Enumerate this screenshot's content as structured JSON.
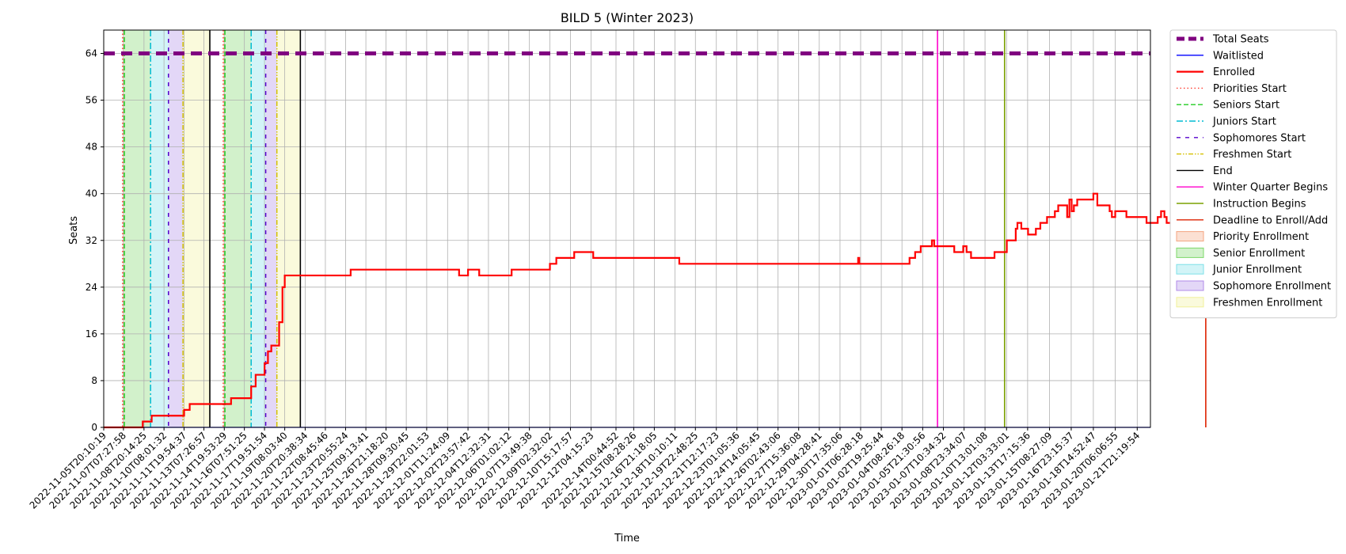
{
  "chart_data": {
    "type": "line",
    "title": "BILD 5 (Winter 2023)",
    "xlabel": "Time",
    "ylabel": "Seats",
    "ylim": [
      0,
      68
    ],
    "yticks": [
      0,
      8,
      16,
      24,
      32,
      40,
      48,
      56,
      64
    ],
    "grid": true,
    "legend_position": "outside-right",
    "x_start": "2022-11-05T20:10:19",
    "x_end": "2023-01-22T21:00:00",
    "x_tick_labels": [
      "2022-11-05T20:10:19",
      "2022-11-07T07:27:58",
      "2022-11-08T20:14:25",
      "2022-11-10T08:01:32",
      "2022-11-11T19:54:37",
      "2022-11-13T07:26:57",
      "2022-11-14T19:53:29",
      "2022-11-16T07:51:25",
      "2022-11-17T19:51:54",
      "2022-11-19T08:03:40",
      "2022-11-20T20:38:34",
      "2022-11-22T08:45:46",
      "2022-11-23T20:55:24",
      "2022-11-25T09:13:41",
      "2022-11-26T21:18:20",
      "2022-11-28T09:30:45",
      "2022-11-29T22:01:53",
      "2022-12-01T11:24:09",
      "2022-12-02T23:57:42",
      "2022-12-04T12:32:31",
      "2022-12-06T01:02:12",
      "2022-12-07T13:49:38",
      "2022-12-09T02:32:02",
      "2022-12-10T15:17:57",
      "2022-12-12T04:15:23",
      "2022-12-14T00:44:52",
      "2022-12-15T08:28:26",
      "2022-12-16T21:18:05",
      "2022-12-18T10:10:11",
      "2022-12-19T22:48:25",
      "2022-12-21T12:17:23",
      "2022-12-23T01:05:36",
      "2022-12-24T14:05:45",
      "2022-12-26T02:43:06",
      "2022-12-27T15:36:08",
      "2022-12-29T04:28:41",
      "2022-12-30T17:35:06",
      "2023-01-01T06:28:18",
      "2023-01-02T19:25:44",
      "2023-01-04T08:26:18",
      "2023-01-05T21:30:56",
      "2023-01-07T10:34:32",
      "2023-01-08T23:34:07",
      "2023-01-10T13:01:08",
      "2023-01-12T03:33:01",
      "2023-01-13T17:15:36",
      "2023-01-15T08:27:09",
      "2023-01-16T23:15:37",
      "2023-01-18T14:52:47",
      "2023-01-20T06:06:55",
      "2023-01-21T21:19:54"
    ],
    "series": [
      {
        "name": "Total Seats",
        "color": "#800080",
        "points": [
          [
            "2022-11-05T20:10:19",
            64
          ],
          [
            "2023-01-22T21:00:00",
            64
          ]
        ]
      },
      {
        "name": "Waitlisted",
        "color": "#0000ff",
        "points": [
          [
            "2022-11-05T20:10:19",
            0
          ],
          [
            "2023-01-22T21:00:00",
            0
          ]
        ]
      },
      {
        "name": "Enrolled",
        "color": "#ff0000",
        "points": [
          [
            "2022-11-05T20:10:19",
            0
          ],
          [
            "2022-11-08T06:00:00",
            0
          ],
          [
            "2022-11-08T18:00:00",
            1
          ],
          [
            "2022-11-09T10:00:00",
            2
          ],
          [
            "2022-11-11T12:00:00",
            2
          ],
          [
            "2022-11-11T20:00:00",
            3
          ],
          [
            "2022-11-12T06:00:00",
            4
          ],
          [
            "2022-11-15T00:00:00",
            4
          ],
          [
            "2022-11-15T08:00:00",
            5
          ],
          [
            "2022-11-16T12:00:00",
            5
          ],
          [
            "2022-11-16T20:00:00",
            7
          ],
          [
            "2022-11-17T04:00:00",
            9
          ],
          [
            "2022-11-17T14:00:00",
            9
          ],
          [
            "2022-11-17T20:00:00",
            11
          ],
          [
            "2022-11-18T02:00:00",
            13
          ],
          [
            "2022-11-18T08:00:00",
            14
          ],
          [
            "2022-11-18T18:00:00",
            14
          ],
          [
            "2022-11-18T22:00:00",
            18
          ],
          [
            "2022-11-19T04:00:00",
            24
          ],
          [
            "2022-11-19T08:03:40",
            26
          ],
          [
            "2022-11-24T00:00:00",
            26
          ],
          [
            "2022-11-24T06:00:00",
            27
          ],
          [
            "2022-12-02T00:00:00",
            27
          ],
          [
            "2022-12-02T08:00:00",
            26
          ],
          [
            "2022-12-03T00:00:00",
            27
          ],
          [
            "2022-12-03T20:00:00",
            26
          ],
          [
            "2022-12-06T00:00:00",
            26
          ],
          [
            "2022-12-06T06:00:00",
            27
          ],
          [
            "2022-12-08T18:00:00",
            27
          ],
          [
            "2022-12-09T02:32:02",
            28
          ],
          [
            "2022-12-09T14:00:00",
            29
          ],
          [
            "2022-12-10T12:00:00",
            29
          ],
          [
            "2022-12-10T22:00:00",
            30
          ],
          [
            "2022-12-12T00:00:00",
            30
          ],
          [
            "2022-12-12T08:00:00",
            29
          ],
          [
            "2022-12-18T12:00:00",
            29
          ],
          [
            "2022-12-18T18:00:00",
            28
          ],
          [
            "2023-01-01T00:00:00",
            28
          ],
          [
            "2023-01-01T02:00:00",
            29
          ],
          [
            "2023-01-01T04:00:00",
            28
          ],
          [
            "2023-01-04T12:00:00",
            28
          ],
          [
            "2023-01-04T22:00:00",
            29
          ],
          [
            "2023-01-05T08:00:00",
            30
          ],
          [
            "2023-01-05T18:00:00",
            31
          ],
          [
            "2023-01-06T12:00:00",
            31
          ],
          [
            "2023-01-06T14:00:00",
            32
          ],
          [
            "2023-01-06T18:00:00",
            31
          ],
          [
            "2023-01-08T00:00:00",
            31
          ],
          [
            "2023-01-08T06:00:00",
            30
          ],
          [
            "2023-01-08T18:00:00",
            30
          ],
          [
            "2023-01-08T22:00:00",
            31
          ],
          [
            "2023-01-09T04:00:00",
            30
          ],
          [
            "2023-01-09T12:00:00",
            29
          ],
          [
            "2023-01-10T22:00:00",
            29
          ],
          [
            "2023-01-11T06:00:00",
            30
          ],
          [
            "2023-01-11T20:00:00",
            30
          ],
          [
            "2023-01-12T04:00:00",
            32
          ],
          [
            "2023-01-12T16:00:00",
            32
          ],
          [
            "2023-01-12T20:00:00",
            34
          ],
          [
            "2023-01-12T23:00:00",
            35
          ],
          [
            "2023-01-13T06:00:00",
            34
          ],
          [
            "2023-01-13T18:00:00",
            33
          ],
          [
            "2023-01-14T08:00:00",
            34
          ],
          [
            "2023-01-14T16:00:00",
            35
          ],
          [
            "2023-01-15T04:00:00",
            36
          ],
          [
            "2023-01-15T18:00:00",
            37
          ],
          [
            "2023-01-16T00:00:00",
            38
          ],
          [
            "2023-01-16T12:00:00",
            38
          ],
          [
            "2023-01-16T16:00:00",
            36
          ],
          [
            "2023-01-16T20:00:00",
            39
          ],
          [
            "2023-01-17T00:00:00",
            37
          ],
          [
            "2023-01-17T04:00:00",
            38
          ],
          [
            "2023-01-17T10:00:00",
            39
          ],
          [
            "2023-01-18T08:00:00",
            39
          ],
          [
            "2023-01-18T14:52:47",
            40
          ],
          [
            "2023-01-18T22:00:00",
            38
          ],
          [
            "2023-01-19T16:00:00",
            38
          ],
          [
            "2023-01-19T20:00:00",
            37
          ],
          [
            "2023-01-20T00:00:00",
            36
          ],
          [
            "2023-01-20T06:00:00",
            37
          ],
          [
            "2023-01-20T22:00:00",
            37
          ],
          [
            "2023-01-21T02:00:00",
            36
          ],
          [
            "2023-01-22T06:00:00",
            36
          ],
          [
            "2023-01-22T14:00:00",
            35
          ],
          [
            "2023-01-23T04:00:00",
            35
          ],
          [
            "2023-01-23T10:00:00",
            36
          ],
          [
            "2023-01-23T16:00:00",
            37
          ],
          [
            "2023-01-23T22:00:00",
            36
          ],
          [
            "2023-01-24T02:00:00",
            35
          ],
          [
            "2023-01-25T12:00:00",
            35
          ],
          [
            "2023-01-25T16:00:00",
            36
          ],
          [
            "2023-01-26T06:00:00",
            36
          ],
          [
            "2023-01-26T12:00:00",
            38
          ],
          [
            "2023-01-27T04:00:00",
            38
          ],
          [
            "2023-01-27T10:00:00",
            41
          ],
          [
            "2023-01-28T10:00:00",
            41
          ]
        ]
      }
    ],
    "vertical_markers": [
      {
        "name": "Priorities Start",
        "color": "#ff3b2f",
        "style": "dotted",
        "x": [
          "2022-11-07T06:00:00",
          "2022-11-14T18:00:00"
        ]
      },
      {
        "name": "Seniors Start",
        "color": "#22cc22",
        "style": "dashed",
        "x": [
          "2022-11-07T09:00:00",
          "2022-11-14T21:00:00"
        ]
      },
      {
        "name": "Juniors Start",
        "color": "#00bcd4",
        "style": "dashdot",
        "x": [
          "2022-11-09T08:00:00",
          "2022-11-16T20:00:00"
        ]
      },
      {
        "name": "Sophomores Start",
        "color": "#5500cc",
        "style": "loosedash",
        "x": [
          "2022-11-10T16:00:00",
          "2022-11-17T22:00:00"
        ]
      },
      {
        "name": "Freshmen Start",
        "color": "#d4c000",
        "style": "dashdotdot",
        "x": [
          "2022-11-11T18:00:00",
          "2022-11-18T18:00:00"
        ]
      },
      {
        "name": "End",
        "color": "#000000",
        "style": "solid",
        "x": [
          "2022-11-13T18:00:00",
          "2022-11-20T12:00:00"
        ]
      },
      {
        "name": "Winter Quarter Begins",
        "color": "#ff00cc",
        "style": "solid",
        "x": [
          "2023-01-07T00:00:00"
        ]
      },
      {
        "name": "Instruction Begins",
        "color": "#7aa000",
        "style": "solid",
        "x": [
          "2023-01-12T00:00:00"
        ]
      },
      {
        "name": "Deadline to Enroll/Add",
        "color": "#dd2200",
        "style": "solid",
        "x": [
          "2023-01-27T00:00:00"
        ]
      }
    ],
    "shaded_periods": [
      {
        "name": "Priority Enrollment",
        "color": "#f4a582",
        "ranges": [
          [
            "2022-11-07T06:00:00",
            "2022-11-07T09:00:00"
          ],
          [
            "2022-11-14T18:00:00",
            "2022-11-14T21:00:00"
          ]
        ]
      },
      {
        "name": "Senior Enrollment",
        "color": "#7ed86a",
        "ranges": [
          [
            "2022-11-07T09:00:00",
            "2022-11-09T08:00:00"
          ],
          [
            "2022-11-14T21:00:00",
            "2022-11-16T20:00:00"
          ]
        ]
      },
      {
        "name": "Junior Enrollment",
        "color": "#7ee0e8",
        "ranges": [
          [
            "2022-11-09T08:00:00",
            "2022-11-10T16:00:00"
          ],
          [
            "2022-11-16T20:00:00",
            "2022-11-17T22:00:00"
          ]
        ]
      },
      {
        "name": "Sophomore Enrollment",
        "color": "#b08be8",
        "ranges": [
          [
            "2022-11-10T16:00:00",
            "2022-11-11T18:00:00"
          ],
          [
            "2022-11-17T22:00:00",
            "2022-11-18T18:00:00"
          ]
        ]
      },
      {
        "name": "Freshmen Enrollment",
        "color": "#f0f09a",
        "ranges": [
          [
            "2022-11-11T18:00:00",
            "2022-11-13T18:00:00"
          ],
          [
            "2022-11-18T18:00:00",
            "2022-11-20T12:00:00"
          ]
        ]
      }
    ],
    "legend": [
      {
        "label": "Total Seats",
        "kind": "line",
        "color": "#800080",
        "style": "thickdash"
      },
      {
        "label": "Waitlisted",
        "kind": "line",
        "color": "#0000ff",
        "style": "solid"
      },
      {
        "label": "Enrolled",
        "kind": "line",
        "color": "#ff0000",
        "style": "solidthick"
      },
      {
        "label": "Priorities Start",
        "kind": "line",
        "color": "#ff3b2f",
        "style": "dotted"
      },
      {
        "label": "Seniors Start",
        "kind": "line",
        "color": "#22cc22",
        "style": "dashed"
      },
      {
        "label": "Juniors Start",
        "kind": "line",
        "color": "#00bcd4",
        "style": "dashdot"
      },
      {
        "label": "Sophomores Start",
        "kind": "line",
        "color": "#5500cc",
        "style": "loosedash"
      },
      {
        "label": "Freshmen Start",
        "kind": "line",
        "color": "#d4c000",
        "style": "dashdotdot"
      },
      {
        "label": "End",
        "kind": "line",
        "color": "#000000",
        "style": "solid"
      },
      {
        "label": "Winter Quarter Begins",
        "kind": "line",
        "color": "#ff00cc",
        "style": "solid"
      },
      {
        "label": "Instruction Begins",
        "kind": "line",
        "color": "#7aa000",
        "style": "solid"
      },
      {
        "label": "Deadline to Enroll/Add",
        "kind": "line",
        "color": "#dd2200",
        "style": "solid"
      },
      {
        "label": "Priority Enrollment",
        "kind": "patch",
        "color": "#f4a582"
      },
      {
        "label": "Senior Enrollment",
        "kind": "patch",
        "color": "#7ed86a"
      },
      {
        "label": "Junior Enrollment",
        "kind": "patch",
        "color": "#7ee0e8"
      },
      {
        "label": "Sophomore Enrollment",
        "kind": "patch",
        "color": "#b08be8"
      },
      {
        "label": "Freshmen Enrollment",
        "kind": "patch",
        "color": "#f0f09a"
      }
    ]
  }
}
